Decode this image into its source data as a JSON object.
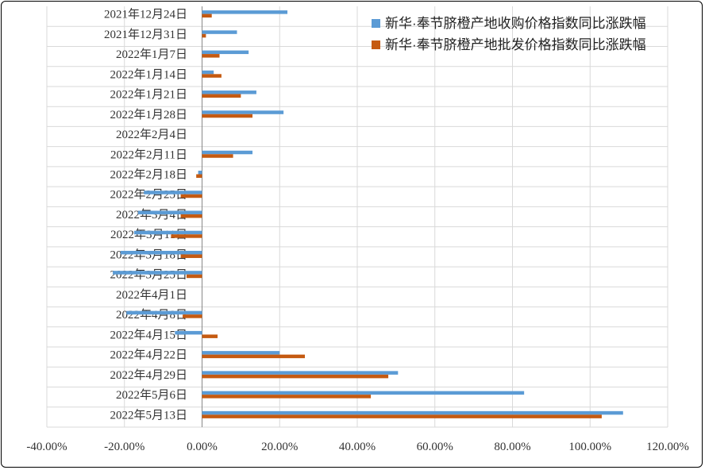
{
  "chart_data": {
    "type": "bar",
    "orientation": "horizontal",
    "categories": [
      "2021年12月24日",
      "2021年12月31日",
      "2022年1月7日",
      "2022年1月14日",
      "2022年1月21日",
      "2022年1月28日",
      "2022年2月4日",
      "2022年2月11日",
      "2022年2月18日",
      "2022年2月25日",
      "2022年3月4日",
      "2022年3月11日",
      "2022年3月18日",
      "2022年3月25日",
      "2022年4月1日",
      "2022年4月8日",
      "2022年4月15日",
      "2022年4月22日",
      "2022年4月29日",
      "2022年5月6日",
      "2022年5月13日"
    ],
    "series": [
      {
        "name": "新华·奉节脐橙产地收购价格指数同比涨跌幅",
        "color": "#5b9bd5",
        "values": [
          22,
          9,
          12,
          3,
          14,
          21,
          0,
          13,
          -1,
          -15,
          -16.5,
          -17.5,
          -21,
          -23,
          null,
          -19.5,
          -7,
          20,
          50.5,
          83,
          108.5
        ]
      },
      {
        "name": "新华·奉节脐橙产地批发价格指数同比涨跌幅",
        "color": "#c55a11",
        "values": [
          2.5,
          1,
          4.5,
          5,
          10,
          13,
          0,
          8,
          -1.5,
          -5.5,
          -5.5,
          -8,
          -5.5,
          -4,
          null,
          -5,
          4,
          26.5,
          48,
          43.5,
          103
        ]
      }
    ],
    "x_ticks": [
      "-40.00%",
      "-20.00%",
      "0.00%",
      "20.00%",
      "40.00%",
      "60.00%",
      "80.00%",
      "100.00%",
      "120.00%"
    ],
    "xlim": [
      -40,
      120
    ],
    "x_unit": "%",
    "grid": "vertical-lines",
    "legend": "top-right",
    "title": "",
    "xlabel": "",
    "ylabel": ""
  }
}
